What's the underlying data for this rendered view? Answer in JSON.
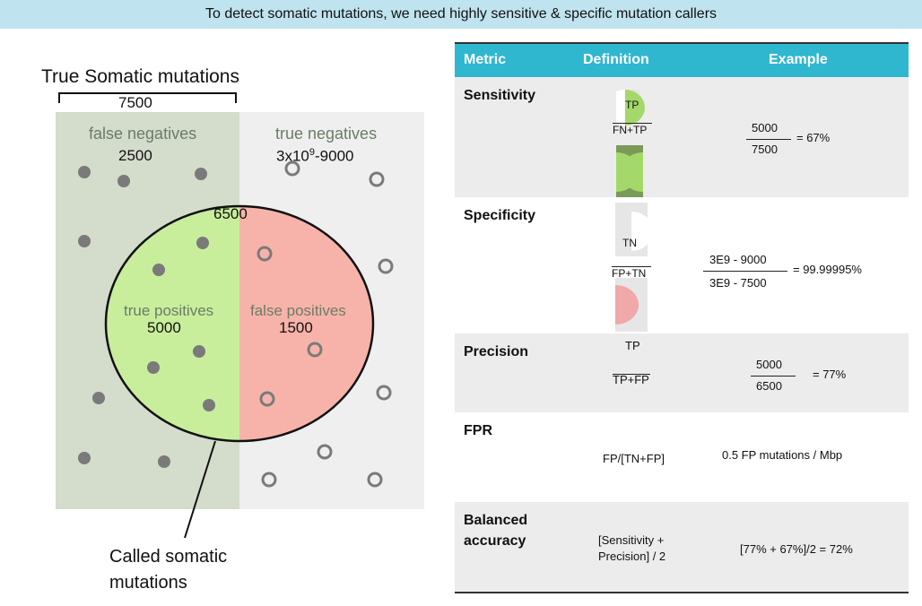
{
  "banner": {
    "text": "To detect somatic mutations, we need highly sensitive & specific mutation callers"
  },
  "diagram": {
    "true_somatic_label": "True Somatic mutations",
    "true_somatic_count": "7500",
    "fn_label": "false negatives",
    "fn_count": "2500",
    "tn_label": "true negatives",
    "tn_count_prefix": "3x10",
    "tn_count_exp": "9",
    "tn_count_suffix": "-9000",
    "called_count": "6500",
    "tp_label": "true positives",
    "tp_count": "5000",
    "fp_label": "false positives",
    "fp_count": "1500",
    "called_label_line1": "Called somatic",
    "called_label_line2": "mutations",
    "colors": {
      "fn_bg": "#d4dccb",
      "tn_bg": "#efefef",
      "tp": "#c8ee9c",
      "fp": "#f7b3aa",
      "dot": "#7a7a7a"
    }
  },
  "table": {
    "headers": {
      "metric": "Metric",
      "definition": "Definition",
      "example": "Example"
    },
    "header_color": "#2fb7cf",
    "rows": [
      {
        "metric": "Sensitivity",
        "def_num": "TP",
        "def_den": "FN+TP",
        "ex_num": "5000",
        "ex_den": "7500",
        "ex_result": "= 67%"
      },
      {
        "metric": "Specificity",
        "def_num": "TN",
        "def_den": "FP+TN",
        "ex_num": "3E9 - 9000",
        "ex_den": "3E9 - 7500",
        "ex_result": "= 99.99995%"
      },
      {
        "metric": "Precision",
        "def_num": "TP",
        "def_den": "TP+FP",
        "ex_num": "5000",
        "ex_den": "6500",
        "ex_result": "= 77%"
      },
      {
        "metric": "FPR",
        "definition": "FP/[TN+FP]",
        "example": "0.5 FP mutations / Mbp"
      },
      {
        "metric_line1": "Balanced",
        "metric_line2": "accuracy",
        "def_line1": "[Sensitivity +",
        "def_line2": "Precision] / 2",
        "example": "[77% + 67%]/2 = 72%"
      }
    ]
  }
}
